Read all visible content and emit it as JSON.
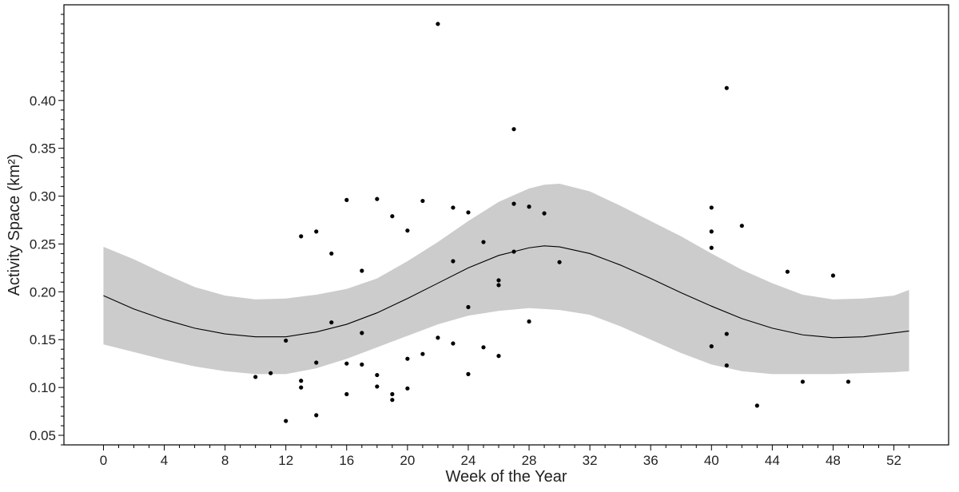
{
  "chart_data": {
    "type": "scatter",
    "xlabel": "Week of the Year",
    "ylabel": "Activity Space (km²)",
    "xlim": [
      -2.6,
      55.6
    ],
    "ylim": [
      0.04,
      0.5
    ],
    "x_ticks": [
      0,
      4,
      8,
      12,
      16,
      20,
      24,
      28,
      32,
      36,
      40,
      44,
      48,
      52
    ],
    "x_tick_labels": [
      "0",
      "4",
      "8",
      "12",
      "16",
      "20",
      "24",
      "28",
      "32",
      "36",
      "40",
      "44",
      "48",
      "52"
    ],
    "y_ticks": [
      0.05,
      0.1,
      0.15,
      0.2,
      0.25,
      0.3,
      0.35,
      0.4
    ],
    "y_tick_labels": [
      "0.05",
      "0.10",
      "0.15",
      "0.20",
      "0.25",
      "0.30",
      "0.35",
      "0.40"
    ],
    "grid": false,
    "colors": {
      "points": "#000000",
      "fit_line": "#000000",
      "confidence_band": "#cccccc",
      "frame": "#000000"
    },
    "series": [
      {
        "type": "scatter",
        "points": [
          [
            10,
            0.111
          ],
          [
            11,
            0.115
          ],
          [
            12,
            0.149
          ],
          [
            12,
            0.065
          ],
          [
            13,
            0.258
          ],
          [
            13,
            0.107
          ],
          [
            13,
            0.1
          ],
          [
            14,
            0.263
          ],
          [
            14,
            0.126
          ],
          [
            14,
            0.071
          ],
          [
            15,
            0.24
          ],
          [
            15,
            0.168
          ],
          [
            16,
            0.296
          ],
          [
            16,
            0.125
          ],
          [
            16,
            0.093
          ],
          [
            17,
            0.222
          ],
          [
            17,
            0.157
          ],
          [
            17,
            0.124
          ],
          [
            18,
            0.297
          ],
          [
            18,
            0.113
          ],
          [
            18,
            0.101
          ],
          [
            19,
            0.279
          ],
          [
            19,
            0.093
          ],
          [
            19,
            0.087
          ],
          [
            20,
            0.264
          ],
          [
            20,
            0.13
          ],
          [
            20,
            0.099
          ],
          [
            21,
            0.295
          ],
          [
            21,
            0.135
          ],
          [
            22,
            0.48
          ],
          [
            22,
            0.152
          ],
          [
            23,
            0.288
          ],
          [
            23,
            0.232
          ],
          [
            23,
            0.146
          ],
          [
            24,
            0.283
          ],
          [
            24,
            0.184
          ],
          [
            24,
            0.114
          ],
          [
            25,
            0.252
          ],
          [
            25,
            0.142
          ],
          [
            26,
            0.212
          ],
          [
            26,
            0.207
          ],
          [
            26,
            0.133
          ],
          [
            27,
            0.37
          ],
          [
            27,
            0.292
          ],
          [
            27,
            0.242
          ],
          [
            28,
            0.289
          ],
          [
            28,
            0.169
          ],
          [
            29,
            0.282
          ],
          [
            30,
            0.231
          ],
          [
            40,
            0.288
          ],
          [
            40,
            0.263
          ],
          [
            40,
            0.246
          ],
          [
            40,
            0.143
          ],
          [
            41,
            0.413
          ],
          [
            41,
            0.156
          ],
          [
            41,
            0.123
          ],
          [
            42,
            0.269
          ],
          [
            43,
            0.081
          ],
          [
            45,
            0.221
          ],
          [
            46,
            0.106
          ],
          [
            48,
            0.217
          ],
          [
            49,
            0.106
          ]
        ]
      },
      {
        "type": "line",
        "x": [
          0,
          2,
          4,
          6,
          8,
          10,
          12,
          14,
          16,
          18,
          20,
          22,
          24,
          26,
          28,
          29,
          30,
          32,
          34,
          36,
          38,
          40,
          42,
          44,
          46,
          48,
          50,
          52,
          53
        ],
        "y": [
          0.196,
          0.182,
          0.171,
          0.162,
          0.156,
          0.153,
          0.153,
          0.158,
          0.166,
          0.178,
          0.193,
          0.209,
          0.225,
          0.238,
          0.246,
          0.248,
          0.247,
          0.24,
          0.228,
          0.214,
          0.199,
          0.185,
          0.172,
          0.162,
          0.155,
          0.152,
          0.153,
          0.157,
          0.159
        ],
        "lower": [
          0.145,
          0.137,
          0.129,
          0.122,
          0.117,
          0.114,
          0.114,
          0.12,
          0.13,
          0.142,
          0.154,
          0.166,
          0.175,
          0.18,
          0.183,
          0.182,
          0.181,
          0.176,
          0.164,
          0.15,
          0.136,
          0.124,
          0.117,
          0.114,
          0.114,
          0.114,
          0.115,
          0.116,
          0.117
        ],
        "upper": [
          0.247,
          0.234,
          0.219,
          0.205,
          0.196,
          0.192,
          0.193,
          0.197,
          0.203,
          0.214,
          0.232,
          0.252,
          0.274,
          0.294,
          0.308,
          0.312,
          0.313,
          0.305,
          0.29,
          0.274,
          0.258,
          0.24,
          0.223,
          0.209,
          0.197,
          0.192,
          0.193,
          0.196,
          0.202
        ]
      }
    ]
  }
}
